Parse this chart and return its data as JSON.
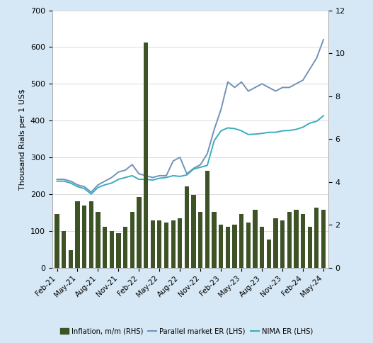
{
  "ylabel_left": "Thousand Rials per 1 US$",
  "background_color": "#d6e8f5",
  "plot_bg_color": "#ffffff",
  "bar_color": "#3d5326",
  "line1_color": "#7192b8",
  "line2_color": "#3aacbe",
  "ylim_left": [
    0,
    700
  ],
  "ylim_right": [
    0,
    12
  ],
  "yticks_left": [
    0,
    100,
    200,
    300,
    400,
    500,
    600,
    700
  ],
  "yticks_right": [
    0,
    2,
    4,
    6,
    8,
    10,
    12
  ],
  "x_labels": [
    "Feb-21",
    "May-21",
    "Aug-21",
    "Nov-21",
    "Feb-22",
    "May-22",
    "Aug-22",
    "Nov-22",
    "Feb-23",
    "May-23",
    "Aug-23",
    "Nov-23",
    "Feb-24",
    "May-24"
  ],
  "inflation_rhs": [
    2.5,
    1.7,
    0.8,
    3.1,
    2.9,
    3.1,
    2.6,
    1.9,
    1.7,
    1.6,
    1.9,
    2.6,
    3.3,
    10.5,
    2.2,
    2.2,
    2.1,
    2.2,
    2.3,
    3.8,
    3.4,
    2.6,
    4.5,
    2.6,
    2.0,
    1.9,
    2.0,
    2.5,
    2.1,
    2.7,
    1.9,
    1.3,
    2.3,
    2.2,
    2.6,
    2.7,
    2.5,
    1.9,
    2.8,
    2.7
  ],
  "parallel_er": [
    240,
    240,
    235,
    225,
    220,
    205,
    225,
    235,
    245,
    260,
    265,
    280,
    255,
    250,
    245,
    250,
    250,
    290,
    300,
    255,
    270,
    280,
    310,
    375,
    430,
    505,
    490,
    505,
    480,
    490,
    500,
    490,
    480,
    490,
    490,
    500,
    510,
    540,
    570,
    620
  ],
  "nima_er": [
    235,
    235,
    230,
    220,
    215,
    200,
    218,
    225,
    230,
    240,
    245,
    250,
    240,
    240,
    238,
    243,
    245,
    250,
    248,
    252,
    268,
    273,
    278,
    345,
    372,
    380,
    378,
    372,
    362,
    363,
    365,
    368,
    368,
    372,
    373,
    376,
    382,
    393,
    398,
    413
  ],
  "legend_labels": [
    "Inflation, m/m (RHS)",
    "Parallel market ER (LHS)",
    "NIMA ER (LHS)"
  ]
}
